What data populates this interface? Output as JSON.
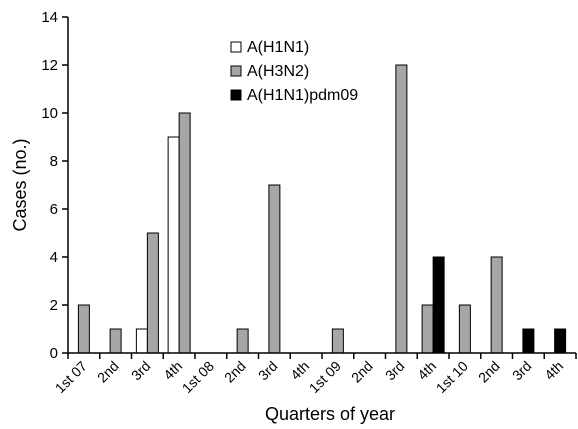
{
  "chart_data": {
    "type": "bar",
    "title": "",
    "xlabel": "Quarters of year",
    "ylabel": "Cases (no.)",
    "ylim": [
      0,
      14
    ],
    "yticks": [
      0,
      2,
      4,
      6,
      8,
      10,
      12,
      14
    ],
    "grid": false,
    "legend_position": "top-center",
    "categories": [
      "1st 07",
      "2nd",
      "3rd",
      "4th",
      "1st 08",
      "2nd",
      "3rd",
      "4th",
      "1st 09",
      "2nd",
      "3rd",
      "4th",
      "1st 10",
      "2nd",
      "3rd",
      "4th"
    ],
    "series": [
      {
        "name": "A(H1N1)",
        "color": "#ffffff",
        "values": [
          0,
          0,
          1,
          9,
          0,
          0,
          0,
          0,
          0,
          0,
          0,
          0,
          0,
          0,
          0,
          0
        ]
      },
      {
        "name": "A(H3N2)",
        "color": "#a6a6a6",
        "values": [
          2,
          1,
          5,
          10,
          0,
          1,
          7,
          0,
          1,
          0,
          12,
          2,
          2,
          4,
          0,
          0
        ]
      },
      {
        "name": "A(H1N1)pdm09",
        "color": "#000000",
        "values": [
          0,
          0,
          0,
          0,
          0,
          0,
          0,
          0,
          0,
          0,
          0,
          4,
          0,
          0,
          1,
          1
        ]
      }
    ]
  }
}
